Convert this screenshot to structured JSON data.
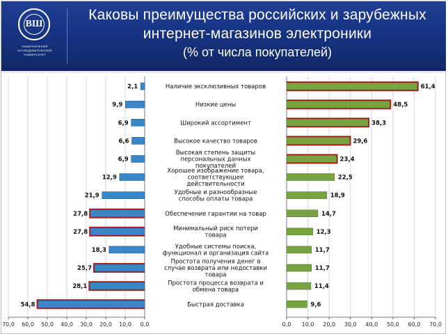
{
  "header": {
    "title_line1": "Каковы преимущества российских и зарубежных",
    "title_line2": "интернет-магазинов электроники",
    "title_line3": "(% от числа покупателей)",
    "logo_caption": "НАЦИОНАЛЬНЫЙ ИССЛЕДОВАТЕЛЬСКИЙ УНИВЕРСИТЕТ",
    "logo_letters": "ВШ",
    "background_color": "#1a3788"
  },
  "chart_data": {
    "type": "bar",
    "orientation": "horizontal",
    "layout": "butterfly",
    "categories": [
      [
        "Наличие эксклюзивных товаров"
      ],
      [
        "Низкие цены"
      ],
      [
        "Широкий ассортимент"
      ],
      [
        "Высокое качество товаров"
      ],
      [
        "Высокая степень защиты",
        "персональных данных",
        "покупателей"
      ],
      [
        "Хорошее изображение товара,",
        "соответствующее",
        "действительности"
      ],
      [
        "Удобные и разнообразные",
        "способы оплаты товара"
      ],
      [
        "Обеспечение гарантии на товар"
      ],
      [
        "Минимальный риск потери",
        "товара"
      ],
      [
        "Удобные системы поиска,",
        "функционал и организация сайта"
      ],
      [
        "Простота получения денег в",
        "случае возврата или недоставки",
        "товара"
      ],
      [
        "Простота процесса возврата и",
        "обмена товара"
      ],
      [
        "Быстрая доставка"
      ]
    ],
    "series": [
      {
        "color": "#3a87c8",
        "values": [
          2.1,
          9.9,
          6.9,
          6.6,
          6.9,
          12.9,
          21.9,
          27.8,
          27.8,
          18.3,
          25.7,
          28.1,
          54.8
        ],
        "highlighted": [
          false,
          false,
          false,
          false,
          false,
          false,
          false,
          true,
          true,
          false,
          true,
          true,
          true
        ]
      },
      {
        "color": "#79a240",
        "values": [
          61.4,
          48.5,
          38.3,
          29.6,
          23.4,
          22.5,
          18.9,
          14.7,
          12.3,
          11.7,
          11.7,
          11.4,
          9.6
        ],
        "highlighted": [
          true,
          true,
          true,
          true,
          true,
          false,
          false,
          false,
          false,
          false,
          false,
          false,
          false
        ]
      }
    ],
    "labels_left": [
      "2,1",
      "9,9",
      "6,9",
      "6,6",
      "6,9",
      "12,9",
      "21,9",
      "27,8",
      "27,8",
      "18,3",
      "25,7",
      "28,1",
      "54,8"
    ],
    "labels_right": [
      "61,4",
      "48,5",
      "38,3",
      "29,6",
      "23,4",
      "22,5",
      "18,9",
      "14,7",
      "12,3",
      "11,7",
      "11,7",
      "11,4",
      "9,6"
    ],
    "left_axis": {
      "range": [
        70,
        0
      ],
      "ticks": [
        "70,0",
        "60,0",
        "50,0",
        "40,0",
        "30,0",
        "20,0",
        "10,0",
        "0,0"
      ]
    },
    "right_axis": {
      "range": [
        0,
        70
      ],
      "ticks": [
        "0,0",
        "10,0",
        "20,0",
        "30,0",
        "40,0",
        "50,0",
        "60,0",
        "70,0"
      ]
    },
    "grid": true,
    "highlight_color": "#b01a1a"
  }
}
